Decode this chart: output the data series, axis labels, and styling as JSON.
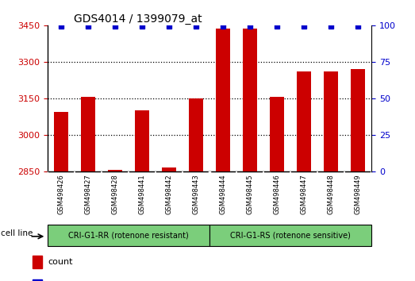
{
  "title": "GDS4014 / 1399079_at",
  "samples": [
    "GSM498426",
    "GSM498427",
    "GSM498428",
    "GSM498441",
    "GSM498442",
    "GSM498443",
    "GSM498444",
    "GSM498445",
    "GSM498446",
    "GSM498447",
    "GSM498448",
    "GSM498449"
  ],
  "counts": [
    3095,
    3155,
    2855,
    3100,
    2865,
    3150,
    3435,
    3435,
    3155,
    3260,
    3260,
    3270
  ],
  "group1_label": "CRI-G1-RR (rotenone resistant)",
  "group2_label": "CRI-G1-RS (rotenone sensitive)",
  "group1_count": 6,
  "group2_count": 6,
  "ymin": 2850,
  "ymax": 3450,
  "yticks": [
    2850,
    3000,
    3150,
    3300,
    3450
  ],
  "y2ticks": [
    0,
    25,
    50,
    75,
    100
  ],
  "y2min": 0,
  "y2max": 100,
  "bar_color": "#cc0000",
  "dot_color": "#0000cc",
  "group_color": "#7bce7b",
  "tick_area_color": "#c8c8c8",
  "bar_width": 0.55
}
